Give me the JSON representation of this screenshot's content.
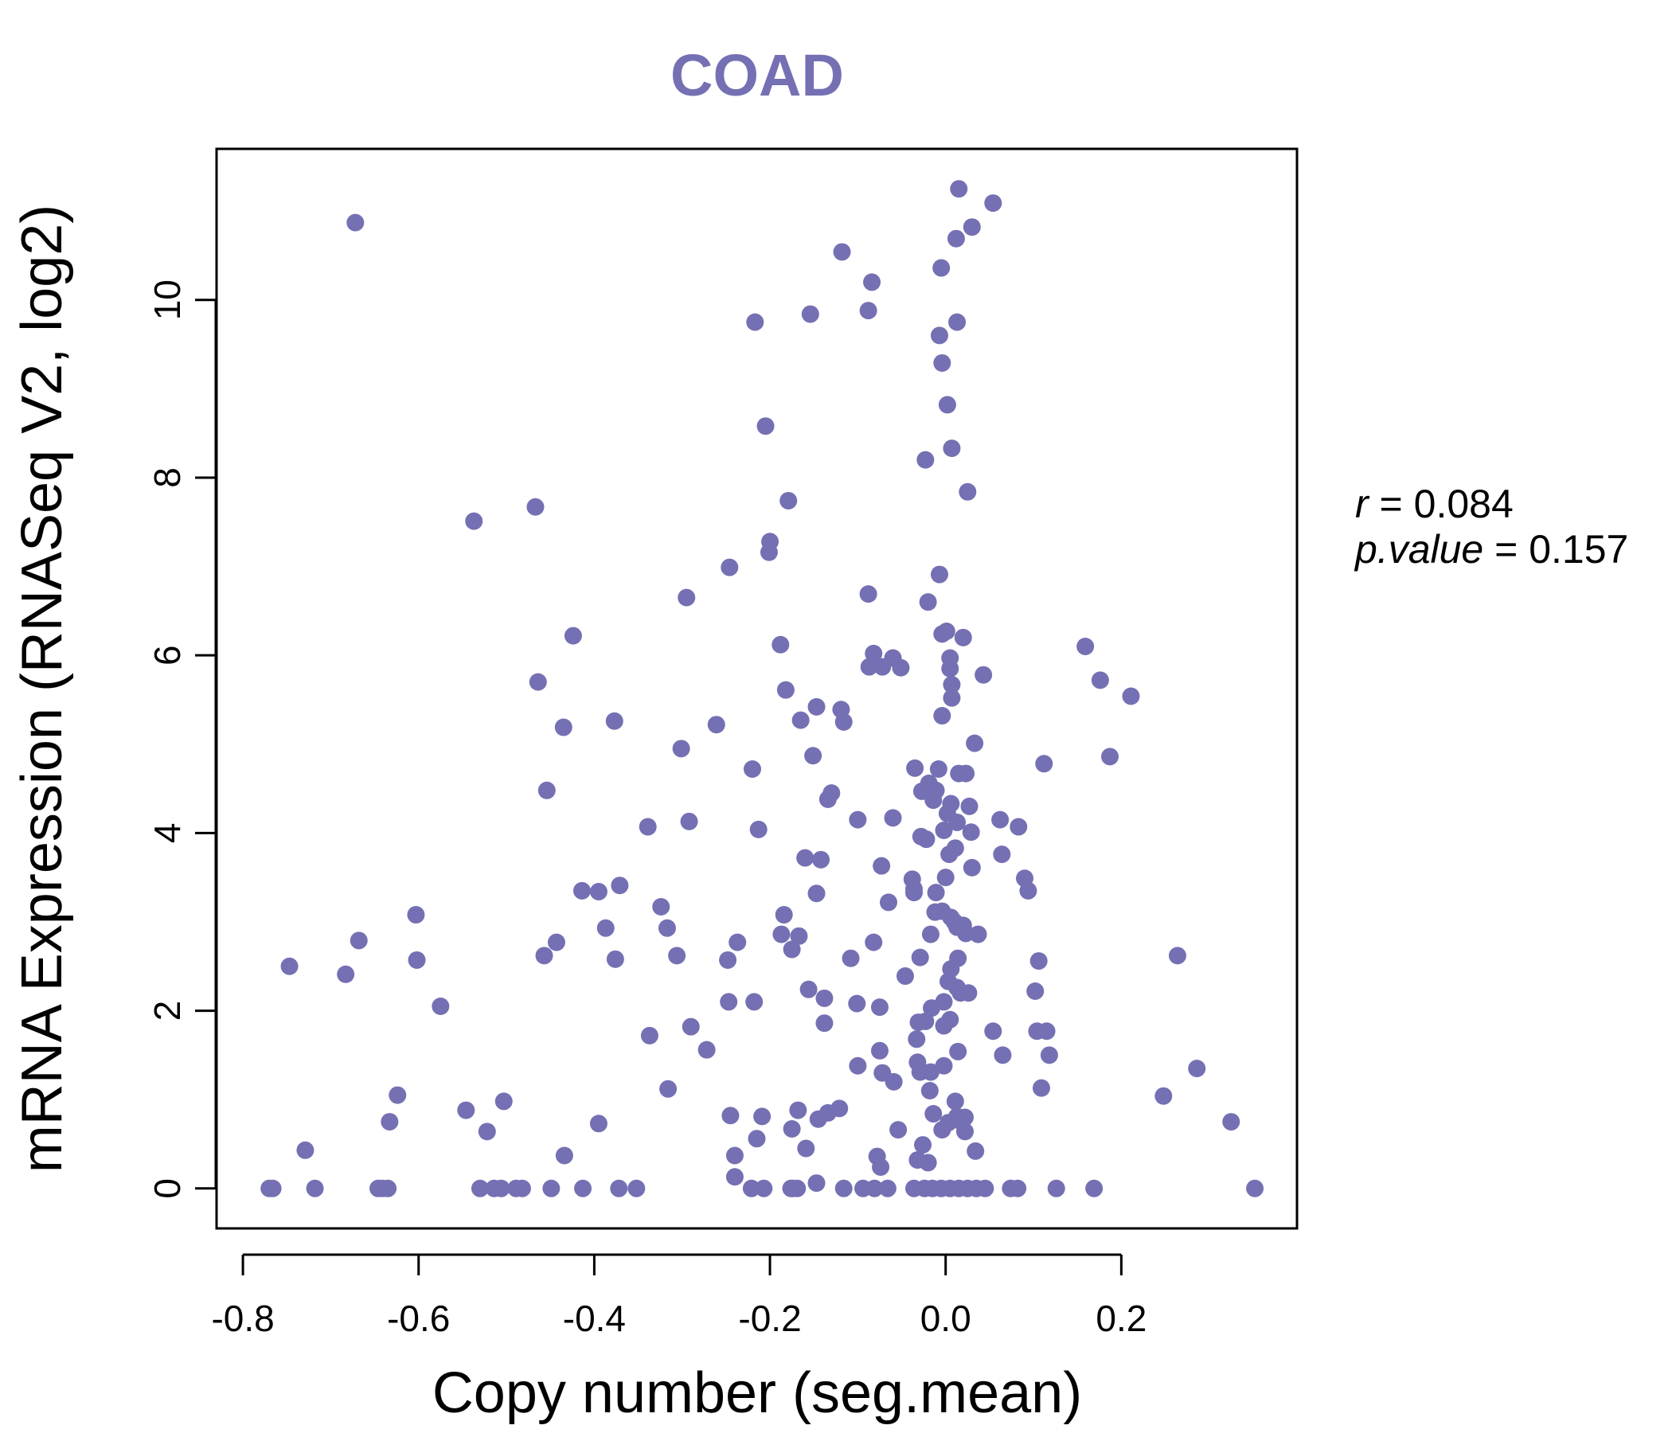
{
  "colors": {
    "accent": "#7570b3",
    "axis": "#000000"
  },
  "stats": {
    "r_label": "r",
    "r_value": "0.084",
    "p_label": "p.value",
    "p_value": "0.157"
  },
  "chart_data": {
    "type": "scatter",
    "title": "COAD",
    "xlabel": "Copy number (seg.mean)",
    "ylabel": "mRNA Expression (RNASeq V2, log2)",
    "xlim": [
      -0.83,
      0.4
    ],
    "ylim": [
      -0.45,
      11.7
    ],
    "xticks": [
      -0.8,
      -0.6,
      -0.4,
      -0.2,
      0.0,
      0.2
    ],
    "xtick_labels": [
      "-0.8",
      "-0.6",
      "-0.4",
      "-0.2",
      "0.0",
      "0.2"
    ],
    "yticks": [
      0,
      2,
      4,
      6,
      8,
      10
    ],
    "ytick_labels": [
      "0",
      "2",
      "4",
      "6",
      "8",
      "10"
    ],
    "grid": false,
    "legend": "none",
    "points": [
      [
        -0.672,
        10.87
      ],
      [
        -0.537,
        7.51
      ],
      [
        -0.467,
        7.67
      ],
      [
        -0.747,
        2.5
      ],
      [
        -0.683,
        2.41
      ],
      [
        -0.668,
        2.79
      ],
      [
        -0.603,
        3.08
      ],
      [
        -0.602,
        2.57
      ],
      [
        -0.575,
        2.05
      ],
      [
        -0.624,
        1.05
      ],
      [
        -0.633,
        0.75
      ],
      [
        -0.546,
        0.88
      ],
      [
        -0.522,
        0.64
      ],
      [
        -0.503,
        0.98
      ],
      [
        -0.729,
        0.43
      ],
      [
        -0.77,
        0.0
      ],
      [
        -0.766,
        0.0
      ],
      [
        -0.718,
        0.0
      ],
      [
        -0.646,
        0.0
      ],
      [
        -0.641,
        0.0
      ],
      [
        -0.635,
        0.0
      ],
      [
        -0.53,
        0.0
      ],
      [
        -0.514,
        0.0
      ],
      [
        -0.506,
        0.0
      ],
      [
        -0.489,
        0.0
      ],
      [
        -0.482,
        0.0
      ],
      [
        -0.449,
        0.0
      ],
      [
        -0.434,
        0.37
      ],
      [
        -0.395,
        0.73
      ],
      [
        -0.413,
        0.0
      ],
      [
        -0.372,
        0.0
      ],
      [
        -0.352,
        0.0
      ],
      [
        -0.424,
        6.22
      ],
      [
        -0.464,
        5.7
      ],
      [
        -0.435,
        5.19
      ],
      [
        -0.377,
        5.26
      ],
      [
        -0.454,
        4.48
      ],
      [
        -0.414,
        3.35
      ],
      [
        -0.395,
        3.34
      ],
      [
        -0.371,
        3.41
      ],
      [
        -0.387,
        2.93
      ],
      [
        -0.376,
        2.58
      ],
      [
        -0.443,
        2.77
      ],
      [
        -0.457,
        2.62
      ],
      [
        -0.339,
        4.07
      ],
      [
        -0.324,
        3.17
      ],
      [
        -0.317,
        2.93
      ],
      [
        -0.306,
        2.62
      ],
      [
        -0.337,
        1.72
      ],
      [
        -0.316,
        1.12
      ],
      [
        -0.295,
        6.65
      ],
      [
        -0.301,
        4.95
      ],
      [
        -0.292,
        4.13
      ],
      [
        -0.29,
        1.82
      ],
      [
        -0.272,
        1.56
      ],
      [
        -0.261,
        5.22
      ],
      [
        -0.246,
        6.99
      ],
      [
        -0.248,
        2.57
      ],
      [
        -0.237,
        2.77
      ],
      [
        -0.247,
        2.1
      ],
      [
        -0.245,
        0.82
      ],
      [
        -0.24,
        0.37
      ],
      [
        -0.24,
        0.13
      ],
      [
        -0.217,
        9.75
      ],
      [
        -0.205,
        8.58
      ],
      [
        -0.2,
        7.28
      ],
      [
        -0.201,
        7.16
      ],
      [
        -0.179,
        7.74
      ],
      [
        -0.188,
        6.12
      ],
      [
        -0.182,
        5.61
      ],
      [
        -0.22,
        4.72
      ],
      [
        -0.213,
        4.04
      ],
      [
        -0.184,
        3.08
      ],
      [
        -0.187,
        2.86
      ],
      [
        -0.175,
        2.69
      ],
      [
        -0.167,
        2.84
      ],
      [
        -0.218,
        2.1
      ],
      [
        -0.215,
        0.56
      ],
      [
        -0.209,
        0.81
      ],
      [
        -0.221,
        0.0
      ],
      [
        -0.207,
        0.0
      ],
      [
        -0.174,
        0.0
      ],
      [
        -0.169,
        0.0
      ],
      [
        -0.154,
        9.84
      ],
      [
        -0.118,
        10.54
      ],
      [
        -0.084,
        10.2
      ],
      [
        -0.088,
        9.88
      ],
      [
        -0.088,
        6.69
      ],
      [
        -0.082,
        6.02
      ],
      [
        -0.087,
        5.87
      ],
      [
        -0.072,
        5.87
      ],
      [
        -0.06,
        5.97
      ],
      [
        -0.051,
        5.86
      ],
      [
        -0.165,
        5.27
      ],
      [
        -0.147,
        5.42
      ],
      [
        -0.119,
        5.39
      ],
      [
        -0.116,
        5.25
      ],
      [
        -0.151,
        4.87
      ],
      [
        -0.13,
        4.45
      ],
      [
        -0.134,
        4.38
      ],
      [
        -0.1,
        4.15
      ],
      [
        -0.147,
        3.32
      ],
      [
        -0.142,
        3.7
      ],
      [
        -0.16,
        3.72
      ],
      [
        -0.156,
        2.24
      ],
      [
        -0.138,
        2.14
      ],
      [
        -0.138,
        1.86
      ],
      [
        -0.159,
        0.45
      ],
      [
        -0.134,
        0.85
      ],
      [
        -0.121,
        0.9
      ],
      [
        -0.145,
        0.78
      ],
      [
        -0.168,
        0.88
      ],
      [
        -0.175,
        0.67
      ],
      [
        -0.176,
        0.0
      ],
      [
        -0.147,
        0.06
      ],
      [
        -0.116,
        0.0
      ],
      [
        -0.108,
        2.59
      ],
      [
        -0.101,
        2.08
      ],
      [
        -0.1,
        1.38
      ],
      [
        -0.094,
        0.0
      ],
      [
        -0.082,
        2.77
      ],
      [
        -0.073,
        3.63
      ],
      [
        -0.065,
        3.22
      ],
      [
        -0.075,
        2.04
      ],
      [
        -0.075,
        1.55
      ],
      [
        -0.072,
        1.3
      ],
      [
        -0.059,
        1.2
      ],
      [
        -0.054,
        0.66
      ],
      [
        -0.078,
        0.36
      ],
      [
        -0.074,
        0.24
      ],
      [
        -0.081,
        0.0
      ],
      [
        -0.066,
        0.0
      ],
      [
        -0.06,
        4.17
      ],
      [
        -0.046,
        2.39
      ],
      [
        -0.035,
        4.73
      ],
      [
        -0.038,
        3.48
      ],
      [
        -0.036,
        3.37
      ],
      [
        -0.036,
        3.33
      ],
      [
        -0.029,
        2.6
      ],
      [
        -0.033,
        1.68
      ],
      [
        -0.031,
        1.87
      ],
      [
        -0.023,
        1.88
      ],
      [
        -0.032,
        1.42
      ],
      [
        -0.029,
        1.31
      ],
      [
        -0.017,
        1.31
      ],
      [
        -0.018,
        1.1
      ],
      [
        -0.026,
        0.49
      ],
      [
        -0.032,
        0.32
      ],
      [
        -0.02,
        0.29
      ],
      [
        -0.014,
        0.84
      ],
      [
        -0.036,
        0.0
      ],
      [
        -0.024,
        0.0
      ],
      [
        -0.015,
        0.0
      ],
      [
        -0.005,
        10.36
      ],
      [
        -0.007,
        9.6
      ],
      [
        -0.004,
        9.29
      ],
      [
        0.002,
        8.82
      ],
      [
        0.007,
        8.33
      ],
      [
        -0.023,
        8.2
      ],
      [
        0.025,
        7.84
      ],
      [
        -0.007,
        6.91
      ],
      [
        -0.02,
        6.6
      ],
      [
        -0.004,
        6.24
      ],
      [
        0.001,
        6.27
      ],
      [
        0.02,
        6.2
      ],
      [
        0.005,
        5.97
      ],
      [
        0.005,
        5.85
      ],
      [
        0.007,
        5.67
      ],
      [
        0.007,
        5.52
      ],
      [
        -0.004,
        5.32
      ],
      [
        0.043,
        5.78
      ],
      [
        0.033,
        5.01
      ],
      [
        -0.008,
        4.72
      ],
      [
        0.015,
        4.67
      ],
      [
        0.023,
        4.67
      ],
      [
        -0.019,
        4.56
      ],
      [
        -0.027,
        4.47
      ],
      [
        -0.014,
        4.37
      ],
      [
        -0.011,
        4.48
      ],
      [
        0.006,
        4.33
      ],
      [
        0.002,
        4.22
      ],
      [
        0.013,
        4.12
      ],
      [
        0.027,
        4.3
      ],
      [
        -0.002,
        4.03
      ],
      [
        0.029,
        4.01
      ],
      [
        -0.028,
        3.96
      ],
      [
        -0.022,
        3.93
      ],
      [
        0.004,
        3.76
      ],
      [
        0.011,
        3.83
      ],
      [
        0.03,
        3.61
      ],
      [
        0.0,
        3.5
      ],
      [
        -0.011,
        3.33
      ],
      [
        -0.012,
        3.11
      ],
      [
        -0.004,
        3.12
      ],
      [
        0.006,
        3.05
      ],
      [
        0.01,
        3.0
      ],
      [
        0.013,
        2.94
      ],
      [
        0.02,
        2.96
      ],
      [
        0.023,
        2.87
      ],
      [
        0.037,
        2.86
      ],
      [
        -0.017,
        2.86
      ],
      [
        0.014,
        2.59
      ],
      [
        0.006,
        2.47
      ],
      [
        0.003,
        2.33
      ],
      [
        0.013,
        2.26
      ],
      [
        0.017,
        2.2
      ],
      [
        0.026,
        2.2
      ],
      [
        -0.002,
        2.1
      ],
      [
        -0.016,
        2.03
      ],
      [
        0.005,
        1.9
      ],
      [
        -0.002,
        1.83
      ],
      [
        0.014,
        1.54
      ],
      [
        -0.002,
        1.38
      ],
      [
        0.011,
        0.98
      ],
      [
        0.013,
        0.81
      ],
      [
        0.018,
        0.75
      ],
      [
        0.022,
        0.8
      ],
      [
        0.003,
        0.74
      ],
      [
        -0.004,
        0.66
      ],
      [
        0.022,
        0.64
      ],
      [
        0.034,
        0.42
      ],
      [
        -0.005,
        0.0
      ],
      [
        0.005,
        0.0
      ],
      [
        0.015,
        0.0
      ],
      [
        0.025,
        0.0
      ],
      [
        0.035,
        0.0
      ],
      [
        0.045,
        0.0
      ],
      [
        0.015,
        11.25
      ],
      [
        0.054,
        11.09
      ],
      [
        0.03,
        10.82
      ],
      [
        0.012,
        10.69
      ],
      [
        0.013,
        9.75
      ],
      [
        0.062,
        4.15
      ],
      [
        0.083,
        4.07
      ],
      [
        0.064,
        3.76
      ],
      [
        0.09,
        3.49
      ],
      [
        0.094,
        3.35
      ],
      [
        0.054,
        1.77
      ],
      [
        0.065,
        1.5
      ],
      [
        0.074,
        0.0
      ],
      [
        0.082,
        0.0
      ],
      [
        0.112,
        4.78
      ],
      [
        0.106,
        2.56
      ],
      [
        0.102,
        2.22
      ],
      [
        0.104,
        1.77
      ],
      [
        0.115,
        1.77
      ],
      [
        0.118,
        1.5
      ],
      [
        0.109,
        1.13
      ],
      [
        0.126,
        0.0
      ],
      [
        0.159,
        6.1
      ],
      [
        0.176,
        5.72
      ],
      [
        0.187,
        4.86
      ],
      [
        0.169,
        0.0
      ],
      [
        0.211,
        5.54
      ],
      [
        0.264,
        2.62
      ],
      [
        0.248,
        1.04
      ],
      [
        0.286,
        1.35
      ],
      [
        0.325,
        0.75
      ],
      [
        0.352,
        0.0
      ]
    ]
  }
}
